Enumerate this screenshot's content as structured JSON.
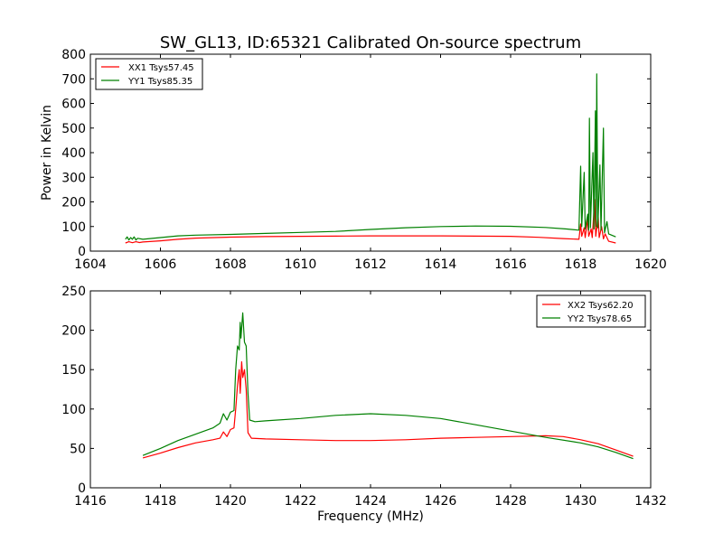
{
  "title": "SW_GL13, ID:65321 Calibrated On-source spectrum",
  "colors": {
    "xx": "#ff0000",
    "yy": "#008000"
  },
  "chart_data": [
    {
      "type": "line",
      "xlabel": "",
      "ylabel": "Power in Kelvin",
      "xlim": [
        1604,
        1620
      ],
      "ylim": [
        0,
        800
      ],
      "xticks": [
        "1604",
        "1606",
        "1608",
        "1610",
        "1612",
        "1614",
        "1616",
        "1618",
        "1620"
      ],
      "yticks": [
        "0",
        "100",
        "200",
        "300",
        "400",
        "500",
        "600",
        "700",
        "800"
      ],
      "legend_position": "top-left",
      "series": [
        {
          "name": "XX1 Tsys57.45",
          "color": "#ff0000",
          "points": [
            [
              1605.0,
              33
            ],
            [
              1605.1,
              38
            ],
            [
              1605.2,
              34
            ],
            [
              1605.3,
              38
            ],
            [
              1605.4,
              35
            ],
            [
              1605.5,
              37
            ],
            [
              1606,
              42
            ],
            [
              1606.5,
              48
            ],
            [
              1607,
              53
            ],
            [
              1608,
              57
            ],
            [
              1609,
              59
            ],
            [
              1610,
              60
            ],
            [
              1611,
              61
            ],
            [
              1612,
              62
            ],
            [
              1613,
              62
            ],
            [
              1614,
              62
            ],
            [
              1615,
              61
            ],
            [
              1616,
              60
            ],
            [
              1616.8,
              56
            ],
            [
              1617.5,
              51
            ],
            [
              1617.95,
              48
            ],
            [
              1618.0,
              110
            ],
            [
              1618.03,
              60
            ],
            [
              1618.1,
              95
            ],
            [
              1618.13,
              55
            ],
            [
              1618.2,
              130
            ],
            [
              1618.23,
              60
            ],
            [
              1618.3,
              90
            ],
            [
              1618.33,
              55
            ],
            [
              1618.4,
              210
            ],
            [
              1618.43,
              60
            ],
            [
              1618.5,
              140
            ],
            [
              1618.53,
              55
            ],
            [
              1618.6,
              100
            ],
            [
              1618.65,
              50
            ],
            [
              1618.7,
              70
            ],
            [
              1618.8,
              40
            ],
            [
              1619.0,
              33
            ]
          ]
        },
        {
          "name": "YY1 Tsys85.35",
          "color": "#008000",
          "points": [
            [
              1605.0,
              48
            ],
            [
              1605.05,
              58
            ],
            [
              1605.1,
              45
            ],
            [
              1605.15,
              55
            ],
            [
              1605.2,
              48
            ],
            [
              1605.25,
              58
            ],
            [
              1605.3,
              45
            ],
            [
              1605.35,
              52
            ],
            [
              1605.5,
              48
            ],
            [
              1606,
              55
            ],
            [
              1606.5,
              62
            ],
            [
              1607,
              65
            ],
            [
              1608,
              68
            ],
            [
              1609,
              72
            ],
            [
              1610,
              76
            ],
            [
              1611,
              80
            ],
            [
              1612,
              88
            ],
            [
              1613,
              95
            ],
            [
              1614,
              100
            ],
            [
              1615,
              102
            ],
            [
              1616,
              101
            ],
            [
              1617,
              96
            ],
            [
              1617.6,
              90
            ],
            [
              1617.95,
              85
            ],
            [
              1618.0,
              345
            ],
            [
              1618.03,
              100
            ],
            [
              1618.1,
              320
            ],
            [
              1618.13,
              90
            ],
            [
              1618.2,
              150
            ],
            [
              1618.23,
              85
            ],
            [
              1618.25,
              540
            ],
            [
              1618.28,
              95
            ],
            [
              1618.35,
              400
            ],
            [
              1618.38,
              90
            ],
            [
              1618.42,
              570
            ],
            [
              1618.44,
              100
            ],
            [
              1618.46,
              720
            ],
            [
              1618.49,
              95
            ],
            [
              1618.55,
              350
            ],
            [
              1618.58,
              85
            ],
            [
              1618.65,
              500
            ],
            [
              1618.68,
              75
            ],
            [
              1618.75,
              120
            ],
            [
              1618.8,
              70
            ],
            [
              1619.0,
              58
            ]
          ]
        }
      ]
    },
    {
      "type": "line",
      "xlabel": "Frequency (MHz)",
      "ylabel": "",
      "xlim": [
        1416,
        1432
      ],
      "ylim": [
        0,
        250
      ],
      "xticks": [
        "1416",
        "1418",
        "1420",
        "1422",
        "1424",
        "1426",
        "1428",
        "1430",
        "1432"
      ],
      "yticks": [
        "0",
        "50",
        "100",
        "150",
        "200",
        "250"
      ],
      "legend_position": "top-right",
      "series": [
        {
          "name": "XX2 Tsys62.20",
          "color": "#ff0000",
          "points": [
            [
              1417.5,
              38
            ],
            [
              1418,
              44
            ],
            [
              1418.5,
              51
            ],
            [
              1419,
              57
            ],
            [
              1419.5,
              61
            ],
            [
              1419.7,
              63
            ],
            [
              1419.8,
              71
            ],
            [
              1419.9,
              65
            ],
            [
              1420.0,
              74
            ],
            [
              1420.1,
              76
            ],
            [
              1420.15,
              100
            ],
            [
              1420.2,
              130
            ],
            [
              1420.25,
              150
            ],
            [
              1420.28,
              120
            ],
            [
              1420.32,
              160
            ],
            [
              1420.35,
              140
            ],
            [
              1420.4,
              150
            ],
            [
              1420.45,
              125
            ],
            [
              1420.5,
              70
            ],
            [
              1420.6,
              63
            ],
            [
              1421,
              62
            ],
            [
              1422,
              61
            ],
            [
              1423,
              60
            ],
            [
              1424,
              60
            ],
            [
              1425,
              61
            ],
            [
              1426,
              63
            ],
            [
              1427,
              64
            ],
            [
              1428,
              65
            ],
            [
              1429,
              66
            ],
            [
              1429.5,
              65
            ],
            [
              1430,
              61
            ],
            [
              1430.5,
              56
            ],
            [
              1431,
              48
            ],
            [
              1431.5,
              40
            ]
          ]
        },
        {
          "name": "YY2 Tsys78.65",
          "color": "#008000",
          "points": [
            [
              1417.5,
              41
            ],
            [
              1418,
              50
            ],
            [
              1418.5,
              60
            ],
            [
              1419,
              68
            ],
            [
              1419.5,
              76
            ],
            [
              1419.7,
              82
            ],
            [
              1419.8,
              94
            ],
            [
              1419.9,
              86
            ],
            [
              1420.0,
              96
            ],
            [
              1420.1,
              98
            ],
            [
              1420.15,
              150
            ],
            [
              1420.2,
              180
            ],
            [
              1420.25,
              175
            ],
            [
              1420.28,
              210
            ],
            [
              1420.3,
              190
            ],
            [
              1420.35,
              222
            ],
            [
              1420.4,
              185
            ],
            [
              1420.45,
              180
            ],
            [
              1420.5,
              120
            ],
            [
              1420.55,
              86
            ],
            [
              1420.7,
              84
            ],
            [
              1421,
              85
            ],
            [
              1422,
              88
            ],
            [
              1423,
              92
            ],
            [
              1424,
              94
            ],
            [
              1425,
              92
            ],
            [
              1426,
              88
            ],
            [
              1427,
              80
            ],
            [
              1428,
              72
            ],
            [
              1429,
              64
            ],
            [
              1430,
              57
            ],
            [
              1430.5,
              52
            ],
            [
              1431,
              45
            ],
            [
              1431.5,
              37
            ]
          ]
        }
      ]
    }
  ]
}
